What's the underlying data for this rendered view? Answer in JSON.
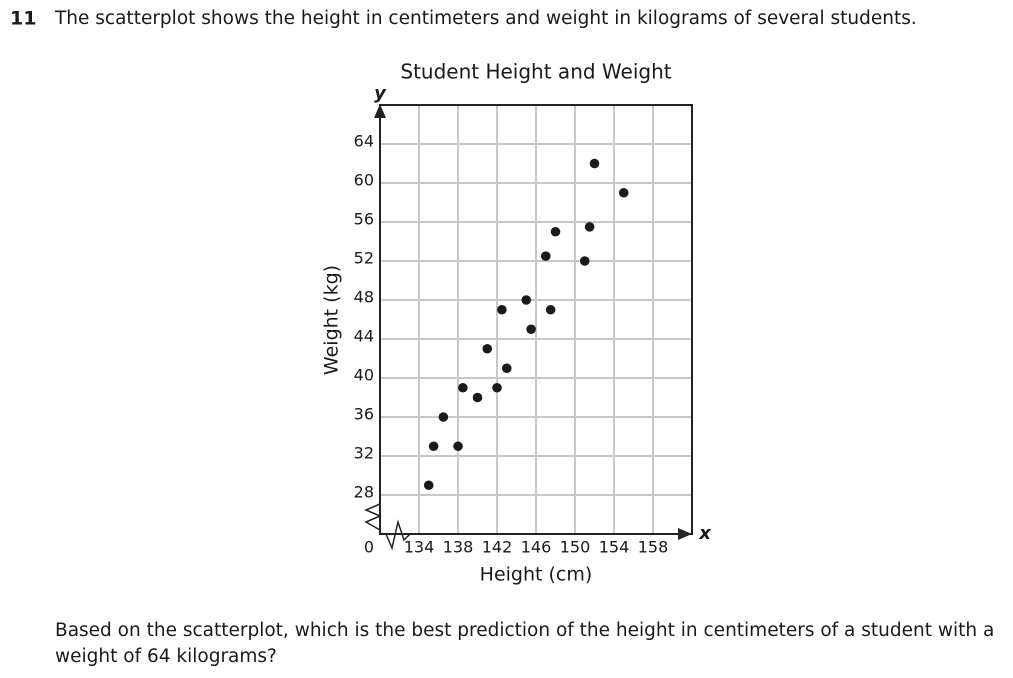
{
  "question_number": "11",
  "question_intro": "The scatterplot shows the height in centimeters and weight in kilograms of several students.",
  "question_prompt": "Based on the scatterplot, which is the best prediction of the height in centimeters of a student with a weight of 64 kilograms?",
  "chart_data": {
    "type": "scatter",
    "title": "Student Height and Weight",
    "x_label": "Height (cm)",
    "y_label": "Weight (kg)",
    "x_axis_symbol": "x",
    "y_axis_symbol": "y",
    "origin_label": "0",
    "x": [
      135,
      135.5,
      136.5,
      138,
      138.5,
      140,
      141,
      142,
      142.5,
      143,
      145,
      145.5,
      147,
      147.5,
      148,
      151,
      151.5,
      152,
      155
    ],
    "values": [
      29,
      33,
      36,
      33,
      39,
      38,
      43,
      39,
      47,
      41,
      48,
      45,
      52.5,
      47,
      55,
      52,
      55.5,
      62,
      59
    ],
    "color": "#1a1a1a",
    "xlim": [
      130,
      162
    ],
    "ylim": [
      24,
      68
    ],
    "xticks": [
      134,
      138,
      142,
      146,
      150,
      154,
      158
    ],
    "yticks": [
      28,
      32,
      36,
      40,
      44,
      48,
      52,
      56,
      60,
      64
    ],
    "grid": true
  }
}
